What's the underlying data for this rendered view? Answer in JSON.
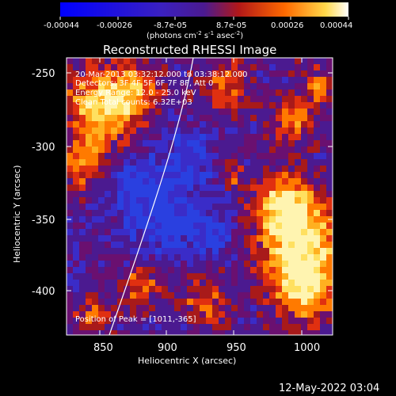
{
  "colorbar": {
    "tick_labels": [
      "-0.00044",
      "-0.00026",
      "-8.7e-05",
      "8.7e-05",
      "0.00026",
      "0.00044"
    ],
    "units_text": "(photons cm",
    "units_exp1": "-2",
    "units_mid": " s",
    "units_exp2": "-1",
    "units_tail": " asec",
    "units_exp3": "-2",
    "units_close": ")",
    "scale_min": -0.00044,
    "scale_max": 0.00044
  },
  "plot": {
    "title": "Reconstructed RHESSI Image",
    "xlabel": "Heliocentric X (arcsec)",
    "ylabel": "Heliocentric Y (arcsec)",
    "xlim": [
      825,
      1020
    ],
    "ylim": [
      -433,
      -240
    ],
    "x_ticks": [
      850,
      900,
      950,
      1000
    ],
    "y_ticks": [
      -250,
      -300,
      -350,
      -400
    ],
    "info": {
      "line1": "20-Mar-2013 03:32:12.000 to 03:38:12.000",
      "line2": "Detectors: 3F 4F 5F 6F 7F 8F, Att 0",
      "line3": "Energy Range: 12.0 - 25.0 keV",
      "line4": "Clean    Total counts: 6.32E+03"
    },
    "peak_text": "Position of Peak = [1011,-365]"
  },
  "footer": {
    "date": "12-May-2022 03:04"
  }
}
